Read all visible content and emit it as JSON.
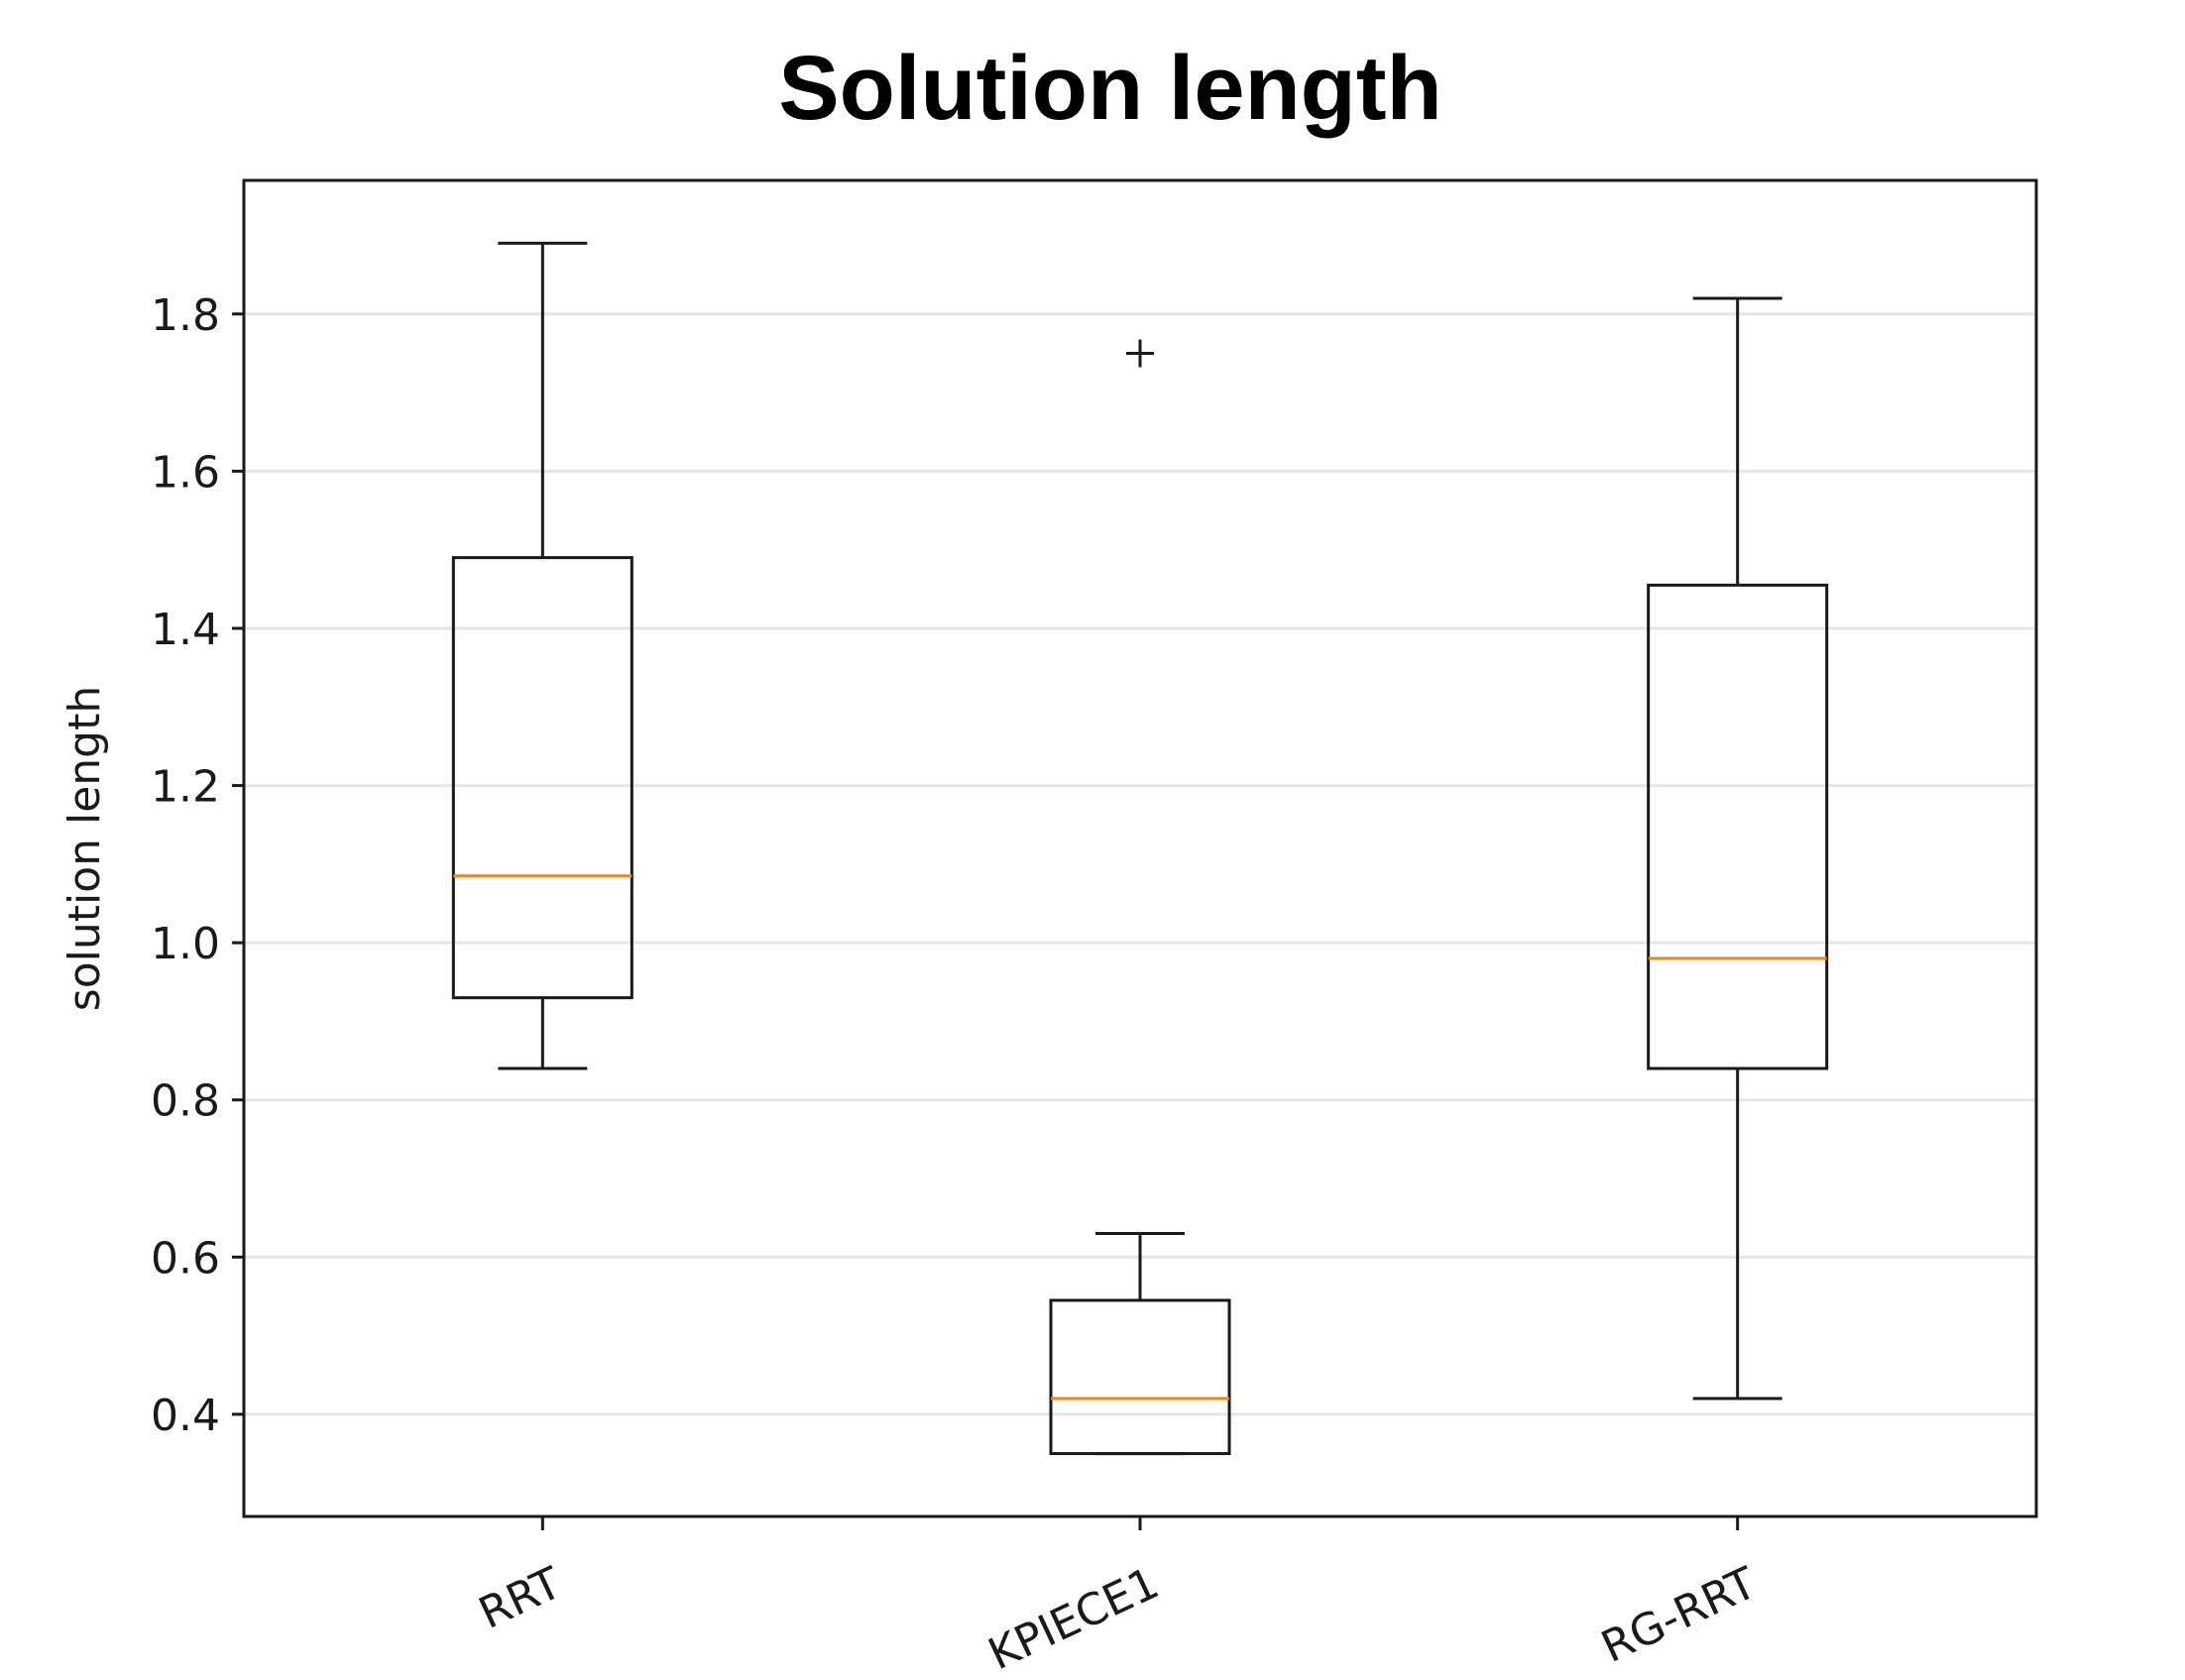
{
  "chart_data": {
    "type": "box",
    "title": "Solution length",
    "xlabel": "",
    "ylabel": "solution length",
    "ylim": [
      0.27,
      1.97
    ],
    "yticks": [
      0.4,
      0.6,
      0.8,
      1.0,
      1.2,
      1.4,
      1.6,
      1.8
    ],
    "ytick_labels": [
      "0.4",
      "0.6",
      "0.8",
      "1.0",
      "1.2",
      "1.4",
      "1.6",
      "1.8"
    ],
    "grid": "horizontal",
    "categories": [
      "RRT",
      "KPIECE1",
      "RG-RRT"
    ],
    "boxes": [
      {
        "category": "RRT",
        "whisker_low": 0.84,
        "q1": 0.93,
        "median": 1.085,
        "q3": 1.49,
        "whisker_high": 1.89,
        "outliers": []
      },
      {
        "category": "KPIECE1",
        "whisker_low": 0.35,
        "q1": 0.35,
        "median": 0.42,
        "q3": 0.545,
        "whisker_high": 0.63,
        "outliers": [
          1.75
        ]
      },
      {
        "category": "RG-RRT",
        "whisker_low": 0.42,
        "q1": 0.84,
        "median": 0.98,
        "q3": 1.455,
        "whisker_high": 1.82,
        "outliers": []
      }
    ],
    "colors": {
      "box": "#1a1a1a",
      "median": "#ff7f0e",
      "grid": "#e6e6e6"
    }
  }
}
